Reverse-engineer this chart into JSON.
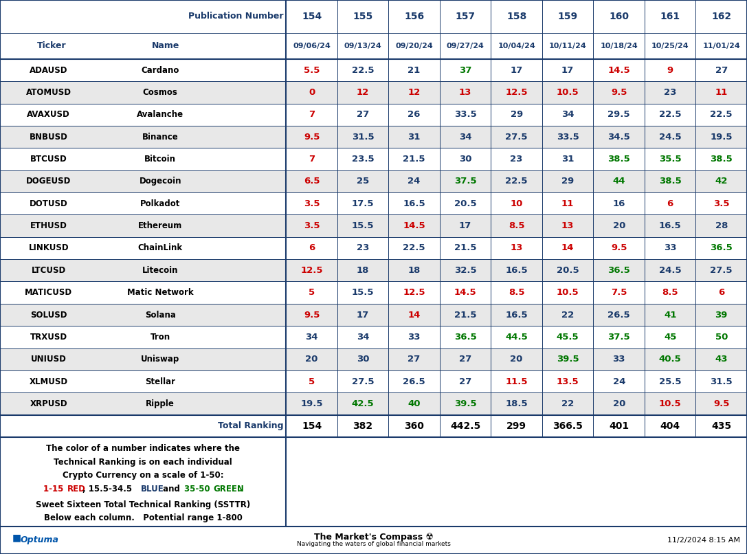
{
  "pub_numbers": [
    "154",
    "155",
    "156",
    "157",
    "158",
    "159",
    "160",
    "161",
    "162"
  ],
  "dates": [
    "09/06/24",
    "09/13/24",
    "09/20/24",
    "09/27/24",
    "10/04/24",
    "10/11/24",
    "10/18/24",
    "10/25/24",
    "11/01/24"
  ],
  "tickers": [
    "ADAUSD",
    "ATOMUSD",
    "AVAXUSD",
    "BNBUSD",
    "BTCUSD",
    "DOGEUSD",
    "DOTUSD",
    "ETHUSD",
    "LINKUSD",
    "LTCUSD",
    "MATICUSD",
    "SOLUSD",
    "TRXUSD",
    "UNIUSD",
    "XLMUSD",
    "XRPUSD"
  ],
  "names": [
    "Cardano",
    "Cosmos",
    "Avalanche",
    "Binance",
    "Bitcoin",
    "Dogecoin",
    "Polkadot",
    "Ethereum",
    "ChainLink",
    "Litecoin",
    "Matic Network",
    "Solana",
    "Tron",
    "Uniswap",
    "Stellar",
    "Ripple"
  ],
  "values": [
    [
      5.5,
      22.5,
      21,
      37,
      17,
      17,
      14.5,
      9,
      27
    ],
    [
      0,
      12,
      12,
      13,
      12.5,
      10.5,
      9.5,
      23,
      11
    ],
    [
      7,
      27,
      26,
      33.5,
      29,
      34,
      29.5,
      22.5,
      22.5
    ],
    [
      9.5,
      31.5,
      31,
      34,
      27.5,
      33.5,
      34.5,
      24.5,
      19.5
    ],
    [
      7,
      23.5,
      21.5,
      30,
      23,
      31,
      38.5,
      35.5,
      38.5
    ],
    [
      6.5,
      25,
      24,
      37.5,
      22.5,
      29,
      44,
      38.5,
      42
    ],
    [
      3.5,
      17.5,
      16.5,
      20.5,
      10,
      11,
      16,
      6,
      3.5
    ],
    [
      3.5,
      15.5,
      14.5,
      17,
      8.5,
      13,
      20,
      16.5,
      28
    ],
    [
      6,
      23,
      22.5,
      21.5,
      13,
      14,
      9.5,
      33,
      36.5
    ],
    [
      12.5,
      18,
      18,
      32.5,
      16.5,
      20.5,
      36.5,
      24.5,
      27.5
    ],
    [
      5,
      15.5,
      12.5,
      14.5,
      8.5,
      10.5,
      7.5,
      8.5,
      6
    ],
    [
      9.5,
      17,
      14,
      21.5,
      16.5,
      22,
      26.5,
      41,
      39
    ],
    [
      34,
      34,
      33,
      36.5,
      44.5,
      45.5,
      37.5,
      45,
      50
    ],
    [
      20,
      30,
      27,
      27,
      20,
      39.5,
      33,
      40.5,
      43
    ],
    [
      5,
      27.5,
      26.5,
      27,
      11.5,
      13.5,
      24,
      25.5,
      31.5
    ],
    [
      19.5,
      42.5,
      40,
      39.5,
      18.5,
      22,
      20,
      10.5,
      9.5
    ]
  ],
  "totals": [
    "154",
    "382",
    "360",
    "442.5",
    "299",
    "366.5",
    "401",
    "404",
    "435"
  ],
  "bg_color": "#ffffff",
  "alt_row_bg": "#e8e8e8",
  "border_color": "#1a3a6b",
  "red_color": "#cc0000",
  "blue_color": "#1a3a6b",
  "green_color": "#007700",
  "footer_left": "Optuma",
  "footer_center": "The Market's Compass ☢",
  "footer_center_sub": "Navigating the waters of global financial markets",
  "footer_right": "11/2/2024 8:15 AM"
}
